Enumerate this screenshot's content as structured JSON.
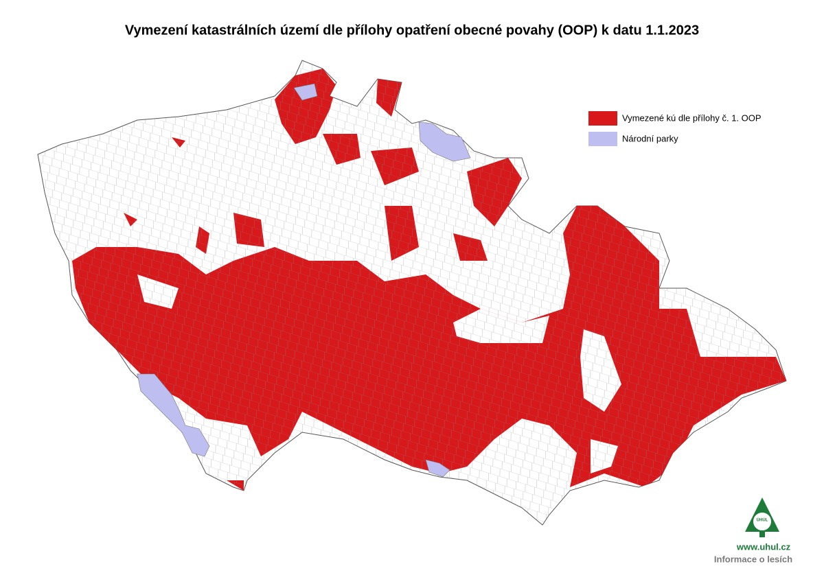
{
  "title": "Vymezení katastrálních území dle přílohy opatření obecné povahy (OOP) k datu 1.1.2023",
  "legend": [
    {
      "label": "Vymezené kú dle přílohy č. 1. OOP",
      "color": "#d7191c"
    },
    {
      "label": "Národní parky",
      "color": "#bebef0"
    }
  ],
  "footer": {
    "logo": "ÚHÚL",
    "url": "www.uhul.cz",
    "tagline": "Informace o lesích"
  }
}
